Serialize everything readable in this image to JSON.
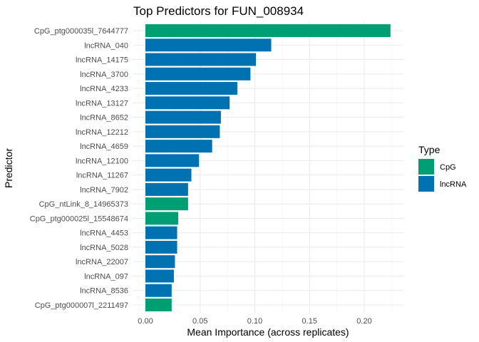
{
  "chart_data": {
    "type": "bar",
    "orientation": "horizontal",
    "title": "Top Predictors for FUN_008934",
    "xlabel": "Mean Importance (across replicates)",
    "ylabel": "Predictor",
    "xlim": [
      0,
      0.23
    ],
    "xticks": [
      "0.00",
      "0.05",
      "0.10",
      "0.15",
      "0.20"
    ],
    "xtick_values": [
      0,
      0.05,
      0.1,
      0.15,
      0.2
    ],
    "grid": true,
    "legend": {
      "title": "Type",
      "position": "right",
      "entries": [
        {
          "label": "CpG",
          "color": "#009E73"
        },
        {
          "label": "lncRNA",
          "color": "#0072B2"
        }
      ]
    },
    "bars": [
      {
        "predictor": "CpG_ptg000035l_7644777",
        "type": "CpG",
        "value": 0.224
      },
      {
        "predictor": "lncRNA_040",
        "type": "lncRNA",
        "value": 0.115
      },
      {
        "predictor": "lncRNA_14175",
        "type": "lncRNA",
        "value": 0.101
      },
      {
        "predictor": "lncRNA_3700",
        "type": "lncRNA",
        "value": 0.096
      },
      {
        "predictor": "lncRNA_4233",
        "type": "lncRNA",
        "value": 0.084
      },
      {
        "predictor": "lncRNA_13127",
        "type": "lncRNA",
        "value": 0.077
      },
      {
        "predictor": "lncRNA_8652",
        "type": "lncRNA",
        "value": 0.069
      },
      {
        "predictor": "lncRNA_12212",
        "type": "lncRNA",
        "value": 0.068
      },
      {
        "predictor": "lncRNA_4659",
        "type": "lncRNA",
        "value": 0.061
      },
      {
        "predictor": "lncRNA_12100",
        "type": "lncRNA",
        "value": 0.049
      },
      {
        "predictor": "lncRNA_11267",
        "type": "lncRNA",
        "value": 0.042
      },
      {
        "predictor": "lncRNA_7902",
        "type": "lncRNA",
        "value": 0.039
      },
      {
        "predictor": "CpG_ntLink_8_14965373",
        "type": "CpG",
        "value": 0.039
      },
      {
        "predictor": "CpG_ptg000025l_15548674",
        "type": "CpG",
        "value": 0.03
      },
      {
        "predictor": "lncRNA_4453",
        "type": "lncRNA",
        "value": 0.029
      },
      {
        "predictor": "lncRNA_5028",
        "type": "lncRNA",
        "value": 0.029
      },
      {
        "predictor": "lncRNA_22007",
        "type": "lncRNA",
        "value": 0.027
      },
      {
        "predictor": "lncRNA_097",
        "type": "lncRNA",
        "value": 0.026
      },
      {
        "predictor": "lncRNA_8536",
        "type": "lncRNA",
        "value": 0.024
      },
      {
        "predictor": "CpG_ptg000007l_2211497",
        "type": "CpG",
        "value": 0.024
      }
    ]
  }
}
